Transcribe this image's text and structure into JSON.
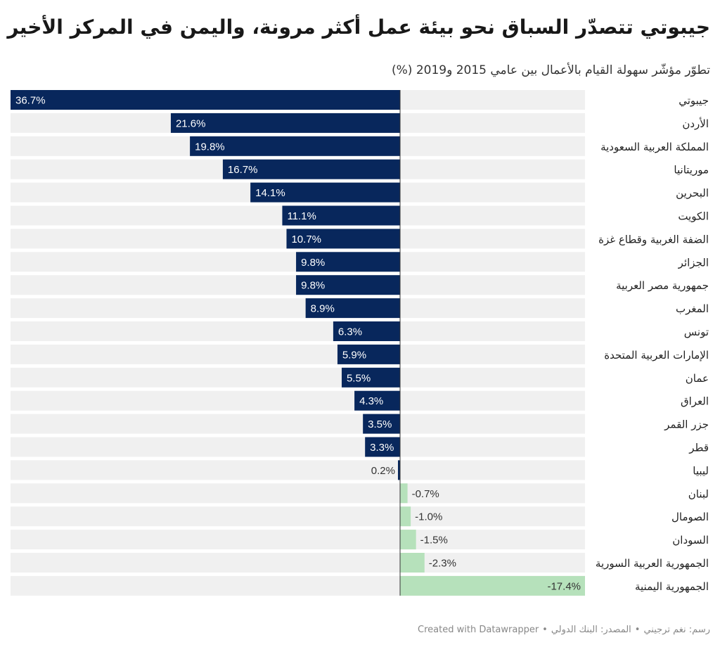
{
  "chart_data": {
    "type": "bar",
    "title": "جيبوتي تتصدّر السباق نحو بيئة عمل أكثر مرونة، واليمن في المركز الأخير",
    "subtitle": "تطوّر مؤشّر سهولة القيام بالأعمال بين عامي 2015 و2019 (%)",
    "categories": [
      "جيبوتي",
      "الأردن",
      "المملكة العربية السعودية",
      "موريتانيا",
      "البحرين",
      "الكويت",
      "الضفة الغربية وقطاع غزة",
      "الجزائر",
      "جمهورية مصر العربية",
      "المغرب",
      "تونس",
      "الإمارات العربية المتحدة",
      "عمان",
      "العراق",
      "جزر القمر",
      "قطر",
      "ليبيا",
      "لبنان",
      "الصومال",
      "السودان",
      "الجمهورية العربية السورية",
      "الجمهورية اليمنية"
    ],
    "values": [
      36.7,
      21.6,
      19.8,
      16.7,
      14.1,
      11.1,
      10.7,
      9.8,
      9.8,
      8.9,
      6.3,
      5.9,
      5.5,
      4.3,
      3.5,
      3.3,
      0.2,
      -0.7,
      -1.0,
      -1.5,
      -2.3,
      -17.4
    ],
    "value_labels": [
      "36.7%",
      "21.6%",
      "19.8%",
      "16.7%",
      "14.1%",
      "11.1%",
      "10.7%",
      "9.8%",
      "9.8%",
      "8.9%",
      "6.3%",
      "5.9%",
      "5.5%",
      "4.3%",
      "3.5%",
      "3.3%",
      "0.2%",
      "-0.7%",
      "-1.0%",
      "-1.5%",
      "-2.3%",
      "-17.4%"
    ],
    "xlim": [
      36.7,
      -17.4
    ],
    "orientation": "horizontal, positive values extend left of zero",
    "colors": {
      "positive": "#08275c",
      "negative": "#b6e1bb",
      "track": "#f0f0f0",
      "axis": "#333333",
      "label_dark": "#ffffff",
      "label_light": "#333333"
    }
  },
  "footer": {
    "credit": "رسم: نغم ترجيني",
    "source": "المصدر: البنك الدولي",
    "separator": "•",
    "created_with": "Created with Datawrapper"
  }
}
